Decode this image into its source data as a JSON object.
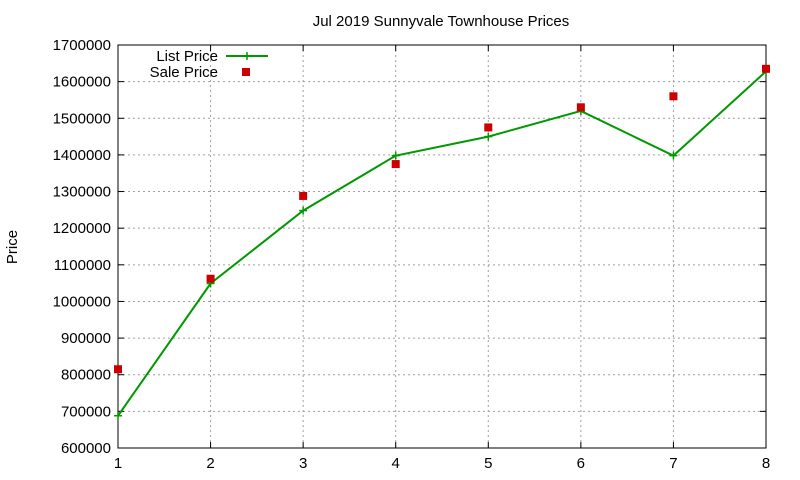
{
  "chart_data": {
    "type": "line",
    "title": "Jul 2019 Sunnyvale Townhouse Prices",
    "xlabel": "",
    "ylabel": "Price",
    "x": [
      1,
      2,
      3,
      4,
      5,
      6,
      7,
      8
    ],
    "xlim": [
      1,
      8
    ],
    "ylim": [
      600000,
      1700000
    ],
    "xticks": [
      "1",
      "2",
      "3",
      "4",
      "5",
      "6",
      "7",
      "8"
    ],
    "yticks": [
      "600000",
      "700000",
      "800000",
      "900000",
      "1000000",
      "1100000",
      "1200000",
      "1300000",
      "1400000",
      "1500000",
      "1600000",
      "1700000"
    ],
    "grid": true,
    "legend_position": "top-left",
    "series": [
      {
        "name": "List Price",
        "style": "line-with-plus-markers",
        "color": "#009900",
        "values": [
          688000,
          1049000,
          1248000,
          1398000,
          1450000,
          1520000,
          1398000,
          1628000
        ]
      },
      {
        "name": "Sale Price",
        "style": "square-markers",
        "color": "#cc0000",
        "values": [
          815000,
          1062000,
          1288000,
          1375000,
          1475000,
          1530000,
          1560000,
          1635000
        ]
      }
    ]
  }
}
